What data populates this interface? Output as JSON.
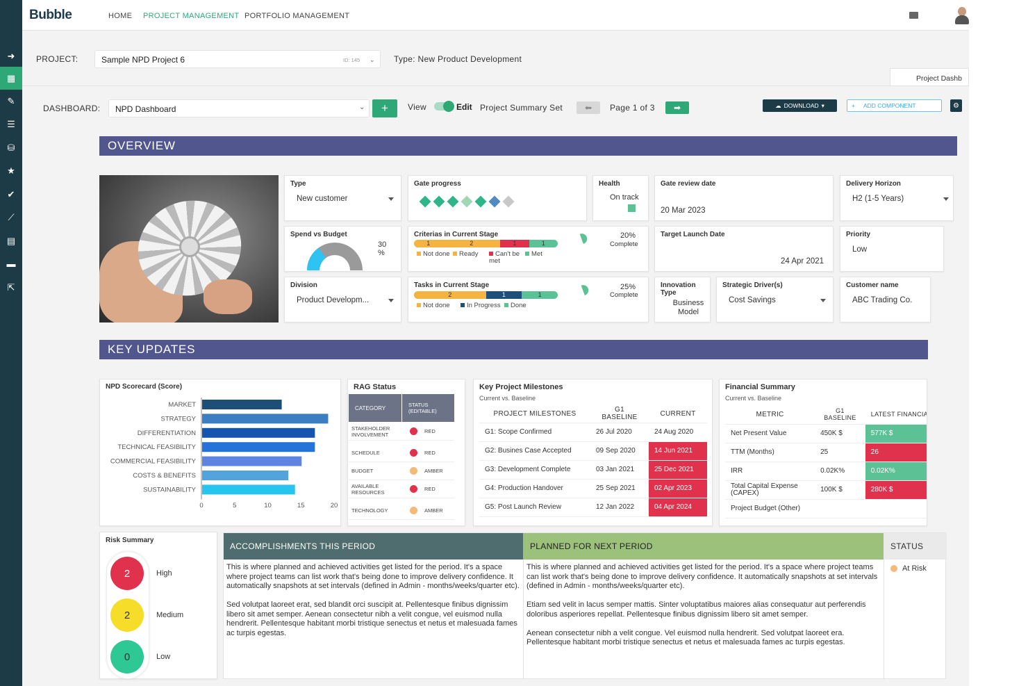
{
  "app": {
    "logo": "Bubble"
  },
  "nav": {
    "items": [
      "HOME",
      "PROJECT MANAGEMENT",
      "PORTFOLIO MANAGEMENT"
    ]
  },
  "sidebar": {
    "icons": [
      "arrow-right-icon",
      "dashboard-icon",
      "pencil-icon",
      "list-icon",
      "database-icon",
      "star-icon",
      "check-circle-icon",
      "line-chart-icon",
      "document-icon",
      "chat-icon",
      "export-icon"
    ]
  },
  "project": {
    "label": "PROJECT:",
    "name": "Sample NPD Project 6",
    "id": "ID: 145",
    "type": "Type: New Product Development"
  },
  "tab": {
    "label": "Project Dashb"
  },
  "dashboard": {
    "label": "DASHBOARD:",
    "name": "NPD Dashboard",
    "add": "+",
    "view": "View",
    "edit": "Edit",
    "summary_set": "Project Summary Set",
    "page": "Page 1 of 3",
    "download": "DOWNLOAD",
    "add_component": "ADD COMPONENT"
  },
  "overview": {
    "title": "OVERVIEW",
    "type": {
      "title": "Type",
      "value": "New customer"
    },
    "gate_progress": {
      "title": "Gate progress",
      "colors": [
        "#2fb58a",
        "#2fb58a",
        "#2fb58a",
        "#9fd8b3",
        "#2fb58a",
        "#4f8ac0",
        "#c8c8c8"
      ]
    },
    "health": {
      "title": "Health",
      "value": "On track",
      "color": "#5cc296"
    },
    "gate_review": {
      "title": "Gate review date",
      "value": "20 Mar 2023"
    },
    "delivery": {
      "title": "Delivery Horizon",
      "value": "H2 (1-5 Years)"
    },
    "spend": {
      "title": "Spend vs Budget",
      "value": "30",
      "unit": "%",
      "fraction": 0.3
    },
    "criterias": {
      "title": "Criterias in Current Stage",
      "segments": [
        {
          "v": "1",
          "c": "#f5b342"
        },
        {
          "v": "2",
          "c": "#f5b342"
        },
        {
          "v": "1",
          "c": "#e0324d"
        },
        {
          "v": "1",
          "c": "#5cc296"
        }
      ],
      "legend": [
        {
          "t": "Not done",
          "c": "#f5b342"
        },
        {
          "t": "Ready",
          "c": "#f5b342"
        },
        {
          "t": "Can't be met",
          "c": "#e0324d"
        },
        {
          "t": "Met",
          "c": "#5cc296"
        }
      ],
      "pct": "20%",
      "pct_label": "Complete"
    },
    "target_launch": {
      "title": "Target Launch Date",
      "value": "24 Apr 2021"
    },
    "priority": {
      "title": "Priority",
      "value": "Low"
    },
    "division": {
      "title": "Division",
      "value": "Product Developm..."
    },
    "tasks": {
      "title": "Tasks in Current Stage",
      "segments": [
        {
          "v": "2",
          "c": "#f5b342"
        },
        {
          "v": "1",
          "c": "#1e4f7a"
        },
        {
          "v": "1",
          "c": "#5cc296"
        }
      ],
      "legend": [
        {
          "t": "Not done",
          "c": "#f5b342"
        },
        {
          "t": "In Progress",
          "c": "#1e4f7a"
        },
        {
          "t": "Done",
          "c": "#5cc296"
        }
      ],
      "pct": "25%",
      "pct_label": "Complete"
    },
    "innovation": {
      "title": "Innovation Type",
      "value": "Business Model"
    },
    "strategic": {
      "title": "Strategic Driver(s)",
      "value": "Cost Savings"
    },
    "customer": {
      "title": "Customer name",
      "value": "ABC Trading Co."
    }
  },
  "key_updates": {
    "title": "KEY UPDATES"
  },
  "chart_data": {
    "type": "bar",
    "title": "NPD Scorecard (Score)",
    "categories": [
      "MARKET",
      "STRATEGY",
      "DIFFERENTIATION",
      "TECHNICAL FEASIBILITY",
      "COMMERCIAL FEASIBILITY",
      "COSTS & BENEFITS",
      "SUSTAINABILITY"
    ],
    "values": [
      12,
      19,
      17,
      17,
      15,
      13,
      14
    ],
    "colors": [
      "#1d4e78",
      "#3b7fc2",
      "#1555b0",
      "#2373d8",
      "#5d84e0",
      "#53a3dc",
      "#27c4f0"
    ],
    "xlim": [
      0,
      20
    ],
    "xticks": [
      "0",
      "5",
      "10",
      "15",
      "20"
    ]
  },
  "rag": {
    "title": "RAG Status",
    "headers": [
      "CATEGORY",
      "STATUS (EDITABLE)"
    ],
    "rows": [
      {
        "cat": "STAKEHOLDER INVOLVEMENT",
        "status": "RED",
        "color": "#e0324d"
      },
      {
        "cat": "SCHEDULE",
        "status": "RED",
        "color": "#e0324d"
      },
      {
        "cat": "BUDGET",
        "status": "AMBER",
        "color": "#f5b97a"
      },
      {
        "cat": "AVAILABLE RESOURCES",
        "status": "RED",
        "color": "#e0324d"
      },
      {
        "cat": "TECHNOLOGY",
        "status": "AMBER",
        "color": "#f5b97a"
      }
    ]
  },
  "milestones": {
    "title": "Key Project Milestones",
    "subtitle": "Current vs. Baseline",
    "headers": [
      "PROJECT MILESTONES",
      "G1 BASELINE",
      "CURRENT"
    ],
    "rows": [
      {
        "name": "G1: Scope Confirmed",
        "base": "26 Jul 2020",
        "cur": "24 Aug 2020",
        "late": false
      },
      {
        "name": "G2: Busines Case Accepted",
        "base": "09 Sep 2020",
        "cur": "14 Jun 2021",
        "late": true
      },
      {
        "name": "G3: Development Complete",
        "base": "03 Jan 2021",
        "cur": "25 Dec 2021",
        "late": true
      },
      {
        "name": "G4: Production Handover",
        "base": "25 Sep 2021",
        "cur": "02 Apr 2023",
        "late": true
      },
      {
        "name": "G5: Post Launch Review",
        "base": "12 Jan 2022",
        "cur": "04 Apr 2024",
        "late": true
      }
    ]
  },
  "financial": {
    "title": "Financial Summary",
    "subtitle": "Current vs. Baseline",
    "headers": [
      "METRIC",
      "G1 BASELINE",
      "LATEST FINANCIA"
    ],
    "rows": [
      {
        "metric": "Net Present Value",
        "base": "450K $",
        "latest": "577K $",
        "status": "green"
      },
      {
        "metric": "TTM (Months)",
        "base": "25",
        "latest": "26",
        "status": "red"
      },
      {
        "metric": "IRR",
        "base": "0.02K%",
        "latest": "0.02K%",
        "status": "green"
      },
      {
        "metric": "Total Capital Expense (CAPEX)",
        "base": "100K $",
        "latest": "280K $",
        "status": "red"
      },
      {
        "metric": "Project Budget (Other)",
        "base": "",
        "latest": "",
        "status": ""
      }
    ]
  },
  "risk": {
    "title": "Risk Summary",
    "items": [
      {
        "count": "2",
        "label": "High",
        "color": "#e0324d",
        "text": "#fff"
      },
      {
        "count": "2",
        "label": "Medium",
        "color": "#f5dd2a",
        "text": "#333"
      },
      {
        "count": "0",
        "label": "Low",
        "color": "#2ec895",
        "text": "#333"
      }
    ]
  },
  "accomplishments": {
    "title": "ACCOMPLISHMENTS THIS PERIOD",
    "p1": "This is where planned and achieved activities get listed for the period. It's a space where project teams can list work that's being done to improve delivery confidence. It automatically snapshots at set intervals (defined in Admin - months/weeks/quarter etc).",
    "p2": "Sed volutpat laoreet erat, sed blandit orci suscipit at. Pellentesque finibus dignissim libero sit amet semper. Aenean consectetur nibh a velit congue, vel euismod nulla hendrerit. Pellentesque habitant morbi tristique senectus et netus et malesuada fames ac turpis egestas."
  },
  "planned": {
    "title": "PLANNED FOR NEXT PERIOD",
    "p1": "This is where planned and achieved activities get listed for the period. It's a space where project teams can list work that's being done to improve delivery confidence. It automatically snapshots at set intervals (defined in Admin - months/weeks/quarter etc).",
    "p2": "Etiam sed velit in lacus semper mattis. Sinter voluptatibus maiores alias consequatur aut perferendis doloribus asperiores repellat. Pellentesque finibus dignissim libero sit amet semper.",
    "p3": "Aenean consectetur nibh a velit congue. Vel euismod nulla hendrerit. Sed volutpat laoreet era. Pellentesque habitant morbi tristique senectus et netus et malesuada fames ac turpis egestas."
  },
  "status": {
    "title": "STATUS",
    "value": "At Risk",
    "color": "#f5b97a"
  }
}
